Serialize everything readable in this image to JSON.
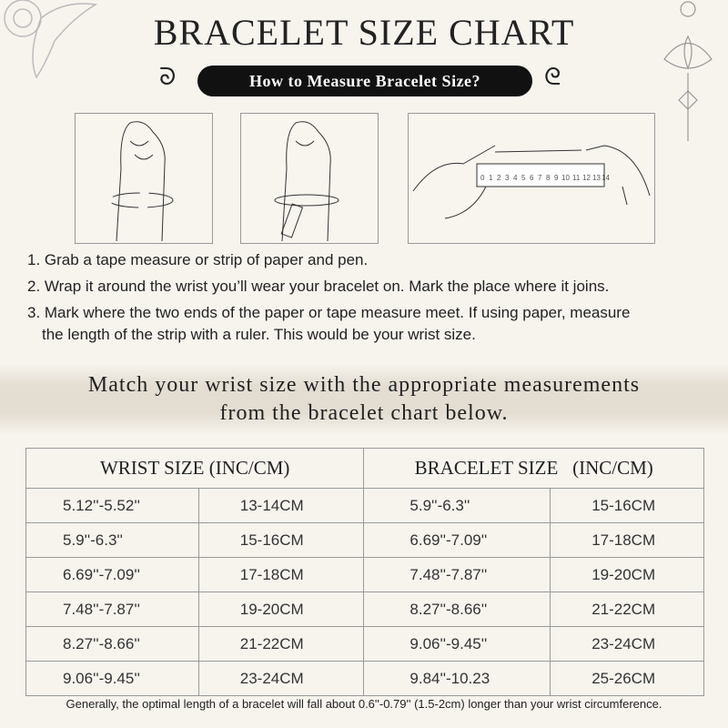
{
  "title": "BRACELET SIZE CHART",
  "subtitle": "How to Measure Bracelet Size?",
  "ruler_numbers": [
    "0",
    "1",
    "2",
    "3",
    "4",
    "5",
    "6",
    "7",
    "8",
    "9",
    "10",
    "11",
    "12",
    "13",
    "14"
  ],
  "steps": [
    "1. Grab a tape measure or strip of paper and pen.",
    "2. Wrap it around the wrist you’ll wear your bracelet on. Mark the place where it joins.",
    "3. Mark where the two ends of the paper or tape measure meet. If using paper, measure",
    "the length of the strip with a ruler. This would be your wrist size."
  ],
  "banner": [
    "Match your wrist size with the appropriate measurements",
    "from the bracelet chart below."
  ],
  "table": {
    "headers": [
      "WRIST SIZE (INC/CM)",
      "BRACELET SIZE   (INC/CM)"
    ],
    "rows": [
      [
        "5.12''-5.52''",
        "13-14CM",
        "5.9''-6.3''",
        "15-16CM"
      ],
      [
        "5.9''-6.3''",
        "15-16CM",
        "6.69''-7.09''",
        "17-18CM"
      ],
      [
        "6.69''-7.09''",
        "17-18CM",
        "7.48''-7.87''",
        "19-20CM"
      ],
      [
        "7.48''-7.87''",
        "19-20CM",
        "8.27''-8.66''",
        "21-22CM"
      ],
      [
        "8.27''-8.66''",
        "21-22CM",
        "9.06''-9.45''",
        "23-24CM"
      ],
      [
        "9.06''-9.45''",
        "23-24CM",
        "9.84''-10.23",
        "25-26CM"
      ]
    ]
  },
  "note": "Generally, the optimal length of a bracelet will fall about 0.6''-0.79'' (1.5-2cm) longer than your wrist circumference."
}
